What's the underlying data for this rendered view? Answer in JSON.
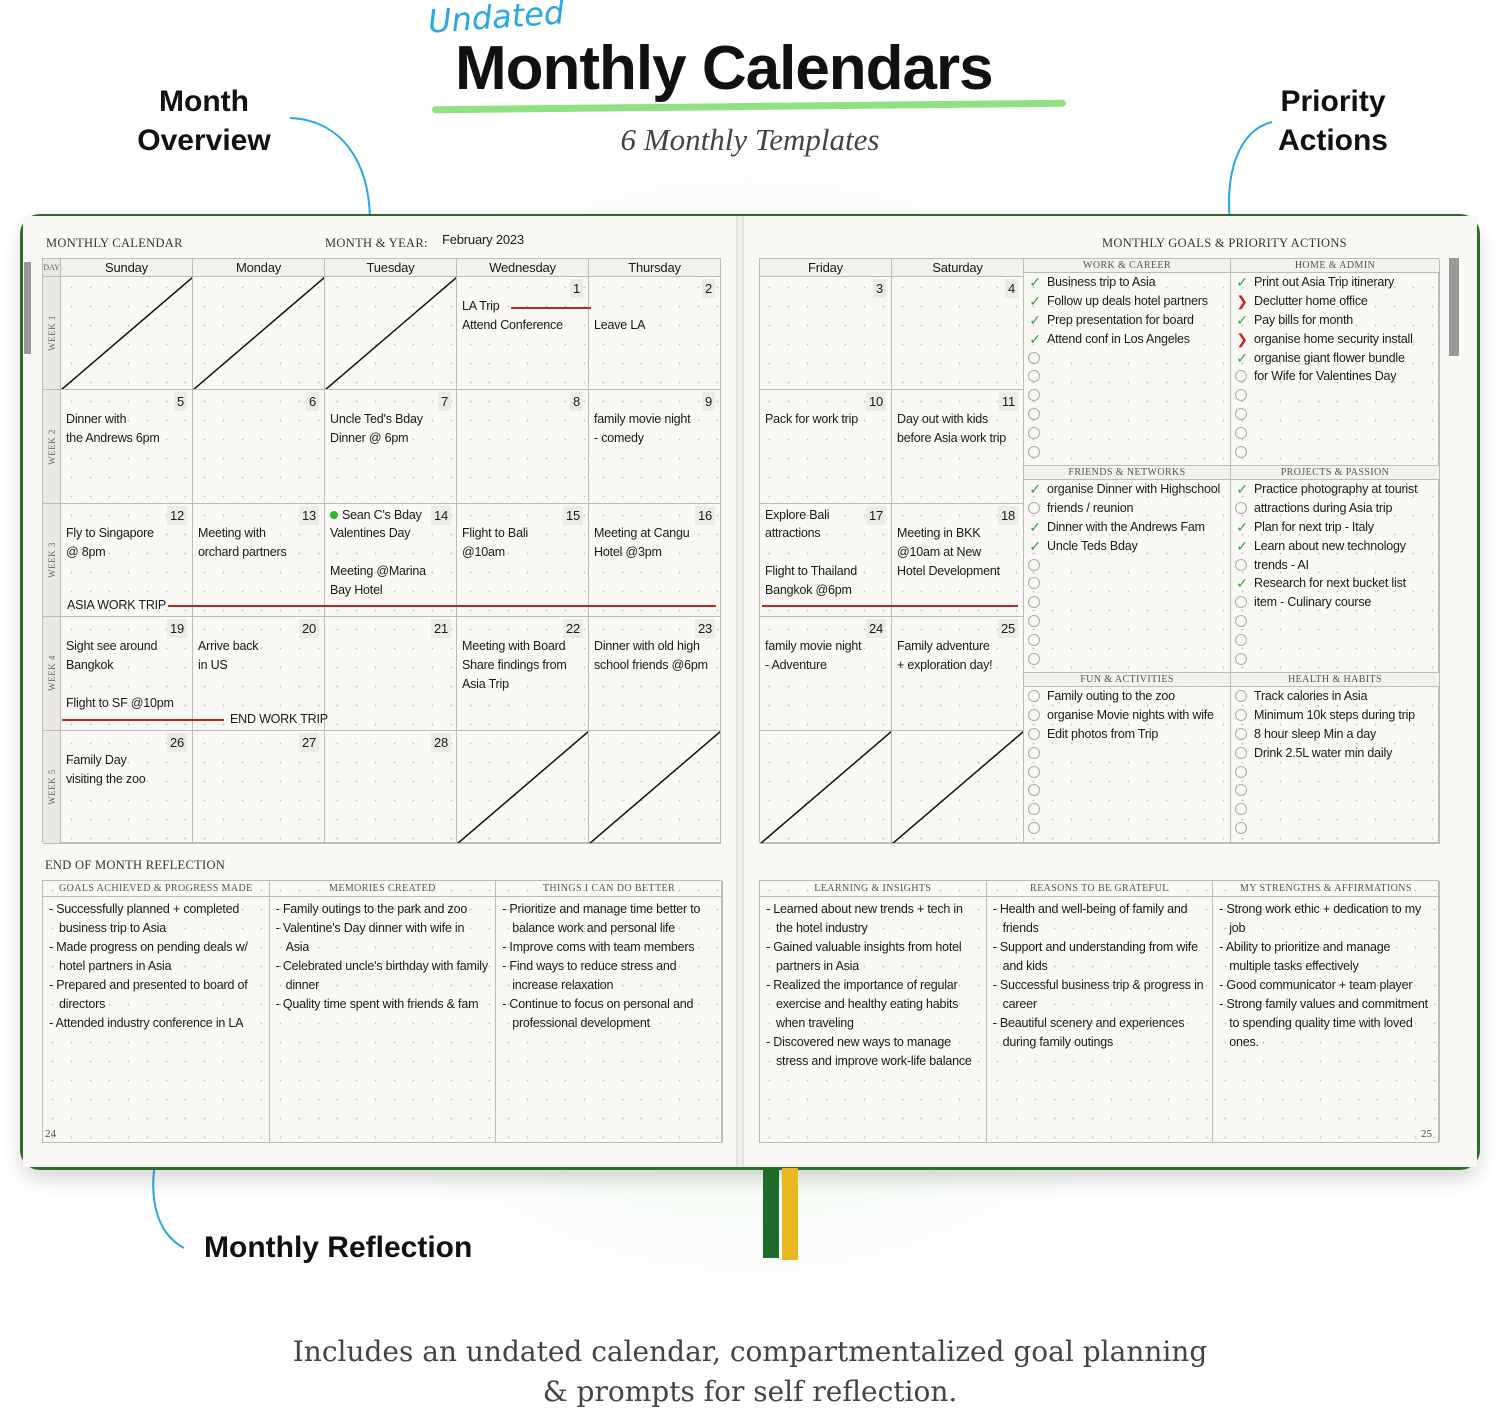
{
  "header": {
    "tag": "Undated",
    "title": "Monthly Calendars",
    "subtitle": "6 Monthly Templates"
  },
  "callouts": {
    "month_overview": [
      "Month",
      "Overview"
    ],
    "priority_actions": [
      "Priority",
      "Actions"
    ],
    "monthly_reflection": "Monthly Reflection"
  },
  "footer": {
    "lines": [
      "Includes an undated calendar, compartmentalized goal planning",
      "& prompts for self reflection."
    ]
  },
  "colors": {
    "accent_green": "#8fe27f",
    "cover_green": "#2e6b2a",
    "check_green": "#3aa13a",
    "timeline_red": "#b52a2a",
    "tag_blue": "#2aa7e0",
    "ribbon_green": "#1f6b2a",
    "ribbon_yellow": "#e8b820"
  },
  "left_page": {
    "heading": "MONTHLY CALENDAR",
    "month_year_label": "MONTH & YEAR:",
    "month_year_value": "February 2023",
    "day_label": "DAY",
    "page_number": "24"
  },
  "right_page": {
    "heading": "MONTHLY GOALS & PRIORITY ACTIONS",
    "page_number": "25"
  },
  "calendar": {
    "days": [
      "Sunday",
      "Monday",
      "Tuesday",
      "Wednesday",
      "Thursday",
      "Friday",
      "Saturday"
    ],
    "weeks": [
      {
        "label": "WEEK 1",
        "cells": [
          {
            "crossed": true
          },
          {
            "crossed": true
          },
          {
            "crossed": true
          },
          {
            "num": "1",
            "lines": [
              "LA Trip",
              "Attend Conference"
            ]
          },
          {
            "num": "2",
            "lines": [
              "",
              "Leave LA"
            ]
          },
          {
            "num": "3",
            "lines": []
          },
          {
            "num": "4",
            "lines": []
          }
        ]
      },
      {
        "label": "WEEK 2",
        "cells": [
          {
            "num": "5",
            "lines": [
              "Dinner with",
              "the Andrews 6pm"
            ]
          },
          {
            "num": "6",
            "lines": []
          },
          {
            "num": "7",
            "lines": [
              "Uncle Ted's Bday",
              "Dinner @ 6pm"
            ]
          },
          {
            "num": "8",
            "lines": []
          },
          {
            "num": "9",
            "lines": [
              "family movie night",
              "- comedy"
            ]
          },
          {
            "num": "10",
            "lines": [
              "Pack for work trip"
            ]
          },
          {
            "num": "11",
            "lines": [
              "Day out with kids",
              "before Asia work trip"
            ]
          }
        ]
      },
      {
        "label": "WEEK 3",
        "cells": [
          {
            "num": "12",
            "lines": [
              "Fly to Singapore",
              "@ 8pm"
            ]
          },
          {
            "num": "13",
            "lines": [
              "Meeting with",
              "orchard partners"
            ]
          },
          {
            "num": "14",
            "note": "Sean C's Bday",
            "lines": [
              "Valentines Day",
              "",
              "Meeting @Marina",
              "Bay Hotel"
            ]
          },
          {
            "num": "15",
            "lines": [
              "Flight to Bali",
              "@10am"
            ]
          },
          {
            "num": "16",
            "lines": [
              "Meeting at Cangu",
              "Hotel @3pm"
            ]
          },
          {
            "num": "17",
            "note": "Explore Bali",
            "lines": [
              "attractions",
              "",
              "Flight to Thailand",
              "Bangkok @6pm"
            ]
          },
          {
            "num": "18",
            "lines": [
              "Meeting in BKK",
              "@10am at New",
              "Hotel Development"
            ]
          }
        ]
      },
      {
        "label": "WEEK 4",
        "cells": [
          {
            "num": "19",
            "lines": [
              "Sight see around",
              "Bangkok",
              "",
              "Flight to SF @10pm"
            ]
          },
          {
            "num": "20",
            "lines": [
              "Arrive back",
              "in US"
            ]
          },
          {
            "num": "21",
            "lines": []
          },
          {
            "num": "22",
            "lines": [
              "Meeting with Board",
              "Share findings from",
              "Asia Trip"
            ]
          },
          {
            "num": "23",
            "lines": [
              "Dinner with old high",
              "school friends @6pm"
            ]
          },
          {
            "num": "24",
            "lines": [
              "family movie night",
              "- Adventure"
            ]
          },
          {
            "num": "25",
            "lines": [
              "Family adventure",
              "+ exploration day!"
            ]
          }
        ]
      },
      {
        "label": "WEEK 5",
        "cells": [
          {
            "num": "26",
            "lines": [
              "Family Day",
              "visiting the zoo"
            ]
          },
          {
            "num": "27",
            "lines": []
          },
          {
            "num": "28",
            "lines": []
          },
          {
            "crossed": true
          },
          {
            "crossed": true
          },
          {
            "crossed": true
          },
          {
            "crossed": true
          }
        ]
      }
    ],
    "timelines": {
      "la_trip": "LA Trip",
      "asia_trip": "ASIA WORK TRIP",
      "end_trip": "END WORK TRIP"
    }
  },
  "goals": [
    {
      "title": "WORK & CAREER",
      "items": [
        {
          "text": "Business trip to Asia",
          "status": "done"
        },
        {
          "text": "Follow up deals hotel partners",
          "status": "done"
        },
        {
          "text": "Prep presentation for board",
          "status": "done"
        },
        {
          "text": "Attend conf in Los Angeles",
          "status": "done"
        }
      ]
    },
    {
      "title": "HOME & ADMIN",
      "items": [
        {
          "text": "Print out Asia Trip itinerary",
          "status": "done"
        },
        {
          "text": "Declutter home office",
          "status": "moved"
        },
        {
          "text": "Pay bills for month",
          "status": "done"
        },
        {
          "text": "organise home security install",
          "status": "moved"
        },
        {
          "text": "organise giant flower bundle",
          "status": "done"
        },
        {
          "text": "for Wife for Valentines Day",
          "status": "open"
        }
      ]
    },
    {
      "title": "FRIENDS & NETWORKS",
      "items": [
        {
          "text": "organise Dinner with Highschool",
          "status": "done"
        },
        {
          "text": "friends / reunion",
          "status": "open"
        },
        {
          "text": "Dinner with the Andrews Fam",
          "status": "done"
        },
        {
          "text": "Uncle Teds Bday",
          "status": "done"
        }
      ]
    },
    {
      "title": "PROJECTS & PASSION",
      "items": [
        {
          "text": "Practice photography at tourist",
          "status": "done"
        },
        {
          "text": "attractions during Asia trip",
          "status": "open"
        },
        {
          "text": "Plan for next trip - Italy",
          "status": "done"
        },
        {
          "text": "Learn about new technology",
          "status": "done"
        },
        {
          "text": "trends - AI",
          "status": "open"
        },
        {
          "text": "Research for next bucket list",
          "status": "done"
        },
        {
          "text": "item - Culinary course",
          "status": "open"
        }
      ]
    },
    {
      "title": "FUN & ACTIVITIES",
      "items": [
        {
          "text": "Family outing to the zoo",
          "status": "open"
        },
        {
          "text": "organise Movie nights with wife",
          "status": "open"
        },
        {
          "text": "Edit photos from Trip",
          "status": "open"
        }
      ]
    },
    {
      "title": "HEALTH & HABITS",
      "items": [
        {
          "text": "Track calories in Asia",
          "status": "open"
        },
        {
          "text": "Minimum 10k steps during trip",
          "status": "open"
        },
        {
          "text": "8 hour sleep Min a day",
          "status": "open"
        },
        {
          "text": "Drink 2.5L water min daily",
          "status": "open"
        }
      ]
    }
  ],
  "reflection": {
    "heading": "END OF MONTH REFLECTION",
    "boxes": [
      {
        "title": "GOALS ACHIEVED & PROGRESS MADE",
        "items": [
          "- Successfully planned + completed business trip to Asia",
          "- Made progress on pending deals w/ hotel partners in Asia",
          "- Prepared and presented to board of directors",
          "- Attended industry conference in LA"
        ]
      },
      {
        "title": "MEMORIES CREATED",
        "items": [
          "- Family outings to the park and zoo",
          "- Valentine's Day dinner with wife in Asia",
          "- Celebrated uncle's birthday with family dinner",
          "- Quality time spent with friends & fam"
        ]
      },
      {
        "title": "THINGS I CAN DO BETTER",
        "items": [
          "- Prioritize and manage time better to balance work and personal life",
          "- Improve coms with team members",
          "- Find ways to reduce stress and increase relaxation",
          "- Continue to focus on personal and professional development"
        ]
      },
      {
        "title": "LEARNING & INSIGHTS",
        "items": [
          "- Learned about new trends + tech in the hotel industry",
          "- Gained valuable insights from hotel partners in Asia",
          "- Realized the importance of regular exercise and healthy eating habits when traveling",
          "- Discovered new ways to manage stress and improve work-life balance"
        ]
      },
      {
        "title": "REASONS TO BE GRATEFUL",
        "items": [
          "- Health and well-being of family and friends",
          "- Support and understanding from wife and kids",
          "- Successful business trip & progress in career",
          "- Beautiful scenery and experiences during family outings"
        ]
      },
      {
        "title": "MY STRENGTHS & AFFIRMATIONS",
        "items": [
          "- Strong work ethic + dedication to my job",
          "- Ability to prioritize and manage multiple tasks effectively",
          "- Good communicator + team player",
          "- Strong family values and commitment to spending quality time with loved ones."
        ]
      }
    ]
  }
}
